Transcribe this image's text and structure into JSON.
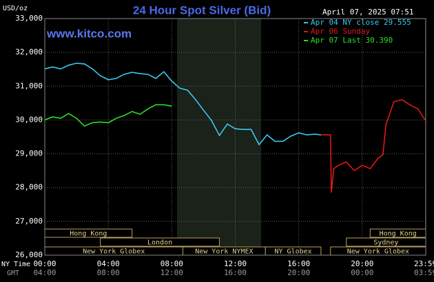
{
  "chart_data": {
    "type": "line",
    "title": "24 Hour Spot Silver (Bid)",
    "timestamp": "April 07, 2025 07:51",
    "watermark": "www.kitco.com",
    "y_axis_label": "USD/oz",
    "x_axis_label": "NY Time",
    "x2_axis_label": "GMT",
    "xlim": [
      0,
      24
    ],
    "ylim": [
      26,
      33
    ],
    "yticks": [
      {
        "value": 26,
        "label": "26,000"
      },
      {
        "value": 27,
        "label": "27,000"
      },
      {
        "value": 28,
        "label": "28,000"
      },
      {
        "value": 29,
        "label": "29,000"
      },
      {
        "value": 30,
        "label": "30,000"
      },
      {
        "value": 31,
        "label": "31,000"
      },
      {
        "value": 32,
        "label": "32,000"
      },
      {
        "value": 33,
        "label": "33,000"
      }
    ],
    "xticks": [
      {
        "value": 0,
        "label": "00:00"
      },
      {
        "value": 4,
        "label": "04:00"
      },
      {
        "value": 8,
        "label": "08:00"
      },
      {
        "value": 12,
        "label": "12:00"
      },
      {
        "value": 16,
        "label": "16:00"
      },
      {
        "value": 20,
        "label": "20:00"
      },
      {
        "value": 23.983,
        "label": "23:59"
      }
    ],
    "x2ticks": [
      {
        "value": 0,
        "label": "04:00"
      },
      {
        "value": 4,
        "label": "08:00"
      },
      {
        "value": 8,
        "label": "12:00"
      },
      {
        "value": 12,
        "label": "16:00"
      },
      {
        "value": 16,
        "label": "20:00"
      },
      {
        "value": 20,
        "label": "00:00"
      },
      {
        "value": 23.983,
        "label": "03:59"
      }
    ],
    "grid": true,
    "shaded_region": [
      8.33,
      13.63
    ],
    "sessions": [
      {
        "label": "Hong Kong",
        "start": 0,
        "end": 5.5
      },
      {
        "label": "London",
        "start": 3.5,
        "end": 11
      },
      {
        "label": "New York Globex",
        "start": 0,
        "end": 8.7
      },
      {
        "label": "New York NYMEX",
        "start": 8.7,
        "end": 13.9
      },
      {
        "label": "NY Globex",
        "start": 13.9,
        "end": 17.4
      },
      {
        "label": "Hong Kong",
        "start": 20.5,
        "end": 24
      },
      {
        "label": "Sydney",
        "start": 19,
        "end": 24
      },
      {
        "label": "New York Globex",
        "start": 18,
        "end": 24
      }
    ],
    "series": [
      {
        "name": "Apr 04 NY close 29.555",
        "color": "#3cc8f0",
        "x": [
          0,
          0.5,
          1,
          1.5,
          2,
          2.5,
          3,
          3.5,
          4,
          4.5,
          5,
          5.5,
          6,
          6.5,
          7,
          7.5,
          8,
          8.5,
          9,
          9.5,
          10,
          10.5,
          11,
          11.5,
          12,
          12.5,
          13,
          13.5,
          14,
          14.5,
          15,
          15.5,
          16,
          16.5,
          17,
          17.4
        ],
        "values": [
          31.51,
          31.57,
          31.51,
          31.62,
          31.68,
          31.66,
          31.51,
          31.31,
          31.19,
          31.23,
          31.35,
          31.41,
          31.37,
          31.35,
          31.23,
          31.43,
          31.15,
          30.94,
          30.88,
          30.6,
          30.29,
          29.99,
          29.54,
          29.88,
          29.74,
          29.72,
          29.72,
          29.27,
          29.56,
          29.37,
          29.37,
          29.52,
          29.62,
          29.56,
          29.58,
          29.56
        ]
      },
      {
        "name": "Apr 06 Sunday",
        "color": "#e01818",
        "x": [
          17.4,
          18,
          18.05,
          18.2,
          18.5,
          19,
          19.5,
          20,
          20.5,
          21,
          21.3,
          21.5,
          22,
          22.5,
          23,
          23.5,
          23.98
        ],
        "values": [
          29.56,
          29.56,
          27.85,
          28.56,
          28.66,
          28.76,
          28.5,
          28.66,
          28.56,
          28.87,
          28.97,
          29.88,
          30.54,
          30.6,
          30.45,
          30.33,
          29.99
        ]
      },
      {
        "name": "Apr 07 Last 30.390",
        "color": "#28e028",
        "x": [
          0,
          0.5,
          1,
          1.5,
          2,
          2.5,
          3,
          3.5,
          4,
          4.5,
          5,
          5.5,
          6,
          6.5,
          7,
          7.5,
          8
        ],
        "values": [
          30.0,
          30.09,
          30.05,
          30.19,
          30.05,
          29.82,
          29.92,
          29.94,
          29.92,
          30.05,
          30.13,
          30.25,
          30.17,
          30.33,
          30.45,
          30.45,
          30.41
        ]
      }
    ]
  }
}
